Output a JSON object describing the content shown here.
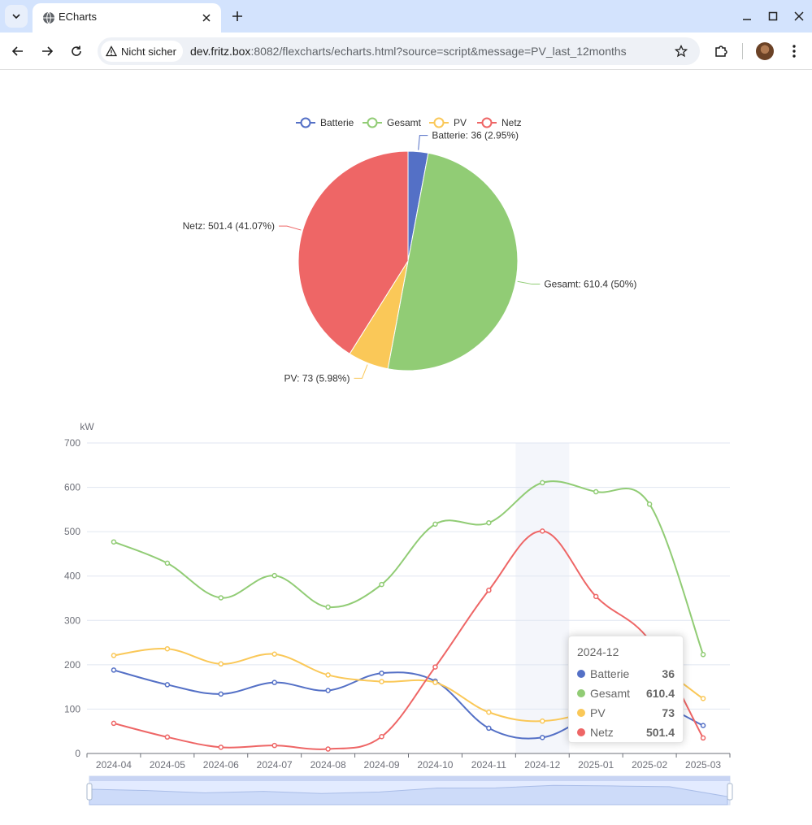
{
  "browser": {
    "tab_title": "ECharts",
    "security_label": "Nicht sicher",
    "url_host": "dev.fritz.box",
    "url_rest": ":8082/flexcharts/echarts.html?source=script&message=PV_last_12months"
  },
  "colors": {
    "Batterie": "#5470c6",
    "Gesamt": "#91cc75",
    "PV": "#fac858",
    "Netz": "#ee6666"
  },
  "chart_data": [
    {
      "type": "pie",
      "legend": [
        "Batterie",
        "Gesamt",
        "PV",
        "Netz"
      ],
      "legend_position": "top-center",
      "slices": [
        {
          "name": "Batterie",
          "value": 36,
          "label": "Batterie: 36 (2.95%)"
        },
        {
          "name": "Gesamt",
          "value": 610.4,
          "label": "Gesamt: 610.4 (50%)"
        },
        {
          "name": "PV",
          "value": 73,
          "label": "PV: 73 (5.98%)"
        },
        {
          "name": "Netz",
          "value": 501.4,
          "label": "Netz: 501.4 (41.07%)"
        }
      ]
    },
    {
      "type": "line",
      "smooth": true,
      "ylabel": "kW",
      "ylim": [
        0,
        700
      ],
      "yticks": [
        0,
        100,
        200,
        300,
        400,
        500,
        600,
        700
      ],
      "grid": true,
      "categories": [
        "2024-04",
        "2024-05",
        "2024-06",
        "2024-07",
        "2024-08",
        "2024-09",
        "2024-10",
        "2024-11",
        "2024-12",
        "2025-01",
        "2025-02",
        "2025-03"
      ],
      "series": [
        {
          "name": "Batterie",
          "values": [
            188,
            155,
            134,
            160,
            142,
            181,
            163,
            57,
            36,
            90,
            115,
            63
          ]
        },
        {
          "name": "Gesamt",
          "values": [
            477,
            429,
            351,
            401,
            330,
            381,
            517,
            520,
            610.4,
            590,
            562,
            223
          ]
        },
        {
          "name": "PV",
          "values": [
            221,
            236,
            202,
            224,
            177,
            162,
            160,
            93,
            73,
            105,
            190,
            124
          ]
        },
        {
          "name": "Netz",
          "values": [
            68,
            37,
            14,
            18,
            10,
            38,
            195,
            368,
            501.4,
            354,
            255,
            35
          ]
        }
      ],
      "highlight_category": "2024-12",
      "tooltip": {
        "title": "2024-12",
        "rows": [
          {
            "name": "Batterie",
            "value": "36"
          },
          {
            "name": "Gesamt",
            "value": "610.4"
          },
          {
            "name": "PV",
            "value": "73"
          },
          {
            "name": "Netz",
            "value": "501.4"
          }
        ]
      }
    }
  ]
}
